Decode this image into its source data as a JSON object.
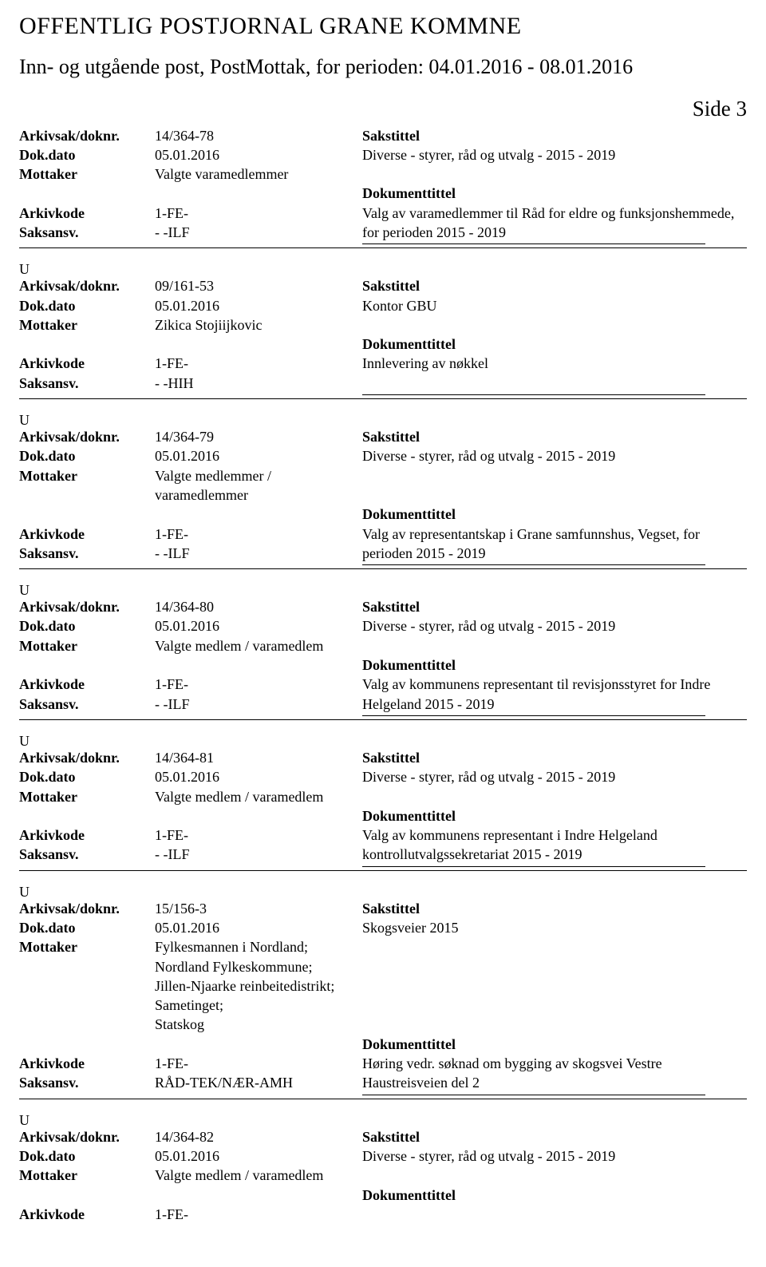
{
  "header": {
    "title": "OFFENTLIG POSTJORNAL GRANE KOMMNE",
    "period": "Inn- og utgående post, PostMottak, for perioden: 04.01.2016 - 08.01.2016",
    "side": "Side 3"
  },
  "labels": {
    "arkivsak": "Arkivsak/doknr.",
    "dokdato": "Dok.dato",
    "mottaker": "Mottaker",
    "arkivkode": "Arkivkode",
    "saksansv": "Saksansv.",
    "sakstittel": "Sakstittel",
    "dokumenttittel": "Dokumenttittel",
    "u": "U"
  },
  "entries": [
    {
      "arkivsak": "14/364-78",
      "dokdato": "05.01.2016",
      "mottaker": "Valgte varamedlemmer",
      "arkivkode": "1-FE-",
      "saksansv": "- -ILF",
      "sakstittel_text": "Diverse - styrer, råd og utvalg - 2015 - 2019",
      "doktittel_text": "Valg av varamedlemmer til Råd for eldre og funksjonshemmede, for perioden 2015 - 2019",
      "first": true
    },
    {
      "arkivsak": "09/161-53",
      "dokdato": "05.01.2016",
      "mottaker": "Zikica Stojiijkovic",
      "arkivkode": "1-FE-",
      "saksansv": "- -HIH",
      "sakstittel_text": "Kontor GBU",
      "doktittel_text": "Innlevering av nøkkel"
    },
    {
      "arkivsak": "14/364-79",
      "dokdato": "05.01.2016",
      "mottaker": "Valgte medlemmer / varamedlemmer",
      "arkivkode": "1-FE-",
      "saksansv": "- -ILF",
      "sakstittel_text": "Diverse - styrer, råd og utvalg - 2015 - 2019",
      "doktittel_text": "Valg av representantskap i Grane samfunnshus, Vegset, for perioden 2015 - 2019"
    },
    {
      "arkivsak": "14/364-80",
      "dokdato": "05.01.2016",
      "mottaker": "Valgte medlem / varamedlem",
      "arkivkode": "1-FE-",
      "saksansv": "- -ILF",
      "sakstittel_text": "Diverse - styrer, råd og utvalg - 2015 - 2019",
      "doktittel_text": "Valg av kommunens representant til revisjonsstyret for Indre Helgeland 2015 - 2019"
    },
    {
      "arkivsak": "14/364-81",
      "dokdato": "05.01.2016",
      "mottaker": "Valgte medlem / varamedlem",
      "arkivkode": "1-FE-",
      "saksansv": "- -ILF",
      "sakstittel_text": "Diverse - styrer, råd og utvalg - 2015 - 2019",
      "doktittel_text": "Valg av kommunens representant i Indre Helgeland kontrollutvalgssekretariat 2015 - 2019"
    },
    {
      "arkivsak": "15/156-3",
      "dokdato": "05.01.2016",
      "mottaker": "Fylkesmannen i Nordland;\nNordland Fylkeskommune;\nJillen-Njaarke reinbeitedistrikt;\nSametinget;\nStatskog",
      "arkivkode": "1-FE-",
      "saksansv": "RÅD-TEK/NÆR-AMH",
      "sakstittel_text": "Skogsveier 2015",
      "doktittel_text": "Høring vedr. søknad om bygging av skogsvei Vestre Haustreisveien del 2",
      "tall_mottaker": true
    },
    {
      "arkivsak": "14/364-82",
      "dokdato": "05.01.2016",
      "mottaker": "Valgte medlem / varamedlem",
      "arkivkode": "1-FE-",
      "saksansv": "",
      "sakstittel_text": "Diverse - styrer, råd og utvalg - 2015 - 2019",
      "doktittel_text": "",
      "truncated": true
    }
  ]
}
